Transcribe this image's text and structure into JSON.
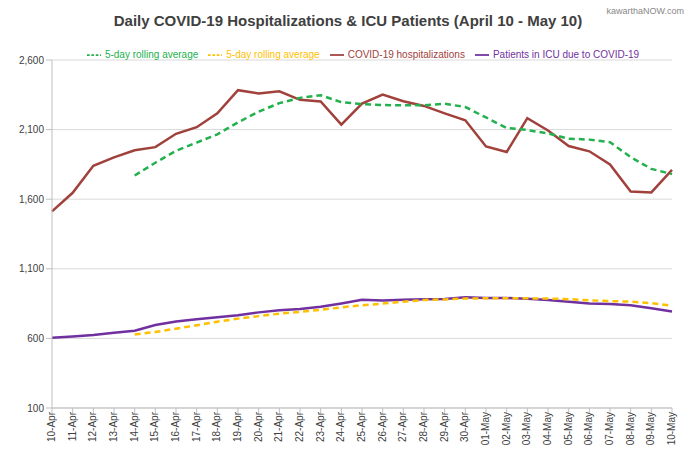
{
  "chart_data": {
    "type": "line",
    "title": "Daily COVID-19 Hospitalizations & ICU Patients (April 10 - May 10)",
    "annotations": [
      "kawarthaNOW.com"
    ],
    "categories": [
      "10-Apr",
      "11-Apr",
      "12-Apr",
      "13-Apr",
      "14-Apr",
      "15-Apr",
      "16-Apr",
      "17-Apr",
      "18-Apr",
      "19-Apr",
      "20-Apr",
      "21-Apr",
      "22-Apr",
      "23-Apr",
      "24-Apr",
      "25-Apr",
      "26-Apr",
      "27-Apr",
      "28-Apr",
      "29-Apr",
      "30-Apr",
      "01-May",
      "02-May",
      "03-May",
      "04-May",
      "05-May",
      "06-May",
      "07-May",
      "08-May",
      "09-May",
      "10-May"
    ],
    "series": [
      {
        "name": "COVID-19 hospitalizations",
        "color": "#a0413c",
        "line_style": "solid",
        "values": [
          1513,
          1646,
          1840,
          1900,
          1952,
          1974,
          2070,
          2117,
          2217,
          2383,
          2360,
          2375,
          2314,
          2302,
          2136,
          2287,
          2352,
          2304,
          2270,
          2217,
          2167,
          1979,
          1939,
          2182,
          2094,
          1982,
          1944,
          1850,
          1655,
          1649,
          1810
        ]
      },
      {
        "name": "Patients in ICU due to COVID-19",
        "color": "#7030a0",
        "line_style": "solid",
        "values": [
          605,
          614,
          625,
          640,
          655,
          696,
          721,
          737,
          752,
          767,
          787,
          802,
          812,
          828,
          851,
          877,
          873,
          877,
          882,
          883,
          895,
          890,
          890,
          885,
          876,
          864,
          851,
          847,
          838,
          816,
          794
        ]
      },
      {
        "name": "5-day rolling average",
        "color": "#22b14c",
        "line_style": "dashed",
        "values": [
          null,
          null,
          null,
          null,
          1770,
          1862,
          1947,
          2007,
          2066,
          2152,
          2229,
          2290,
          2328,
          2347,
          2297,
          2283,
          2276,
          2275,
          2274,
          2286,
          2262,
          2187,
          2112,
          2097,
          2072,
          2035,
          2028,
          2010,
          1902,
          1818,
          1780
        ]
      },
      {
        "name": "5-day rolling average",
        "color": "#ffc000",
        "line_style": "dashed",
        "values": [
          null,
          null,
          null,
          null,
          628,
          646,
          670,
          694,
          720,
          742,
          760,
          778,
          791,
          805,
          823,
          838,
          850,
          864,
          876,
          880,
          886,
          888,
          889,
          888,
          886,
          882,
          874,
          868,
          864,
          853,
          835
        ]
      }
    ],
    "ylim": [
      100,
      2600
    ],
    "yticks": [
      {
        "value": 100,
        "label": "100"
      },
      {
        "value": 600,
        "label": "600"
      },
      {
        "value": 1100,
        "label": "1,100"
      },
      {
        "value": 1600,
        "label": "1,600"
      },
      {
        "value": 2100,
        "label": "2,100"
      },
      {
        "value": 2600,
        "label": "2,600"
      }
    ],
    "grid": true,
    "legend": "top"
  }
}
